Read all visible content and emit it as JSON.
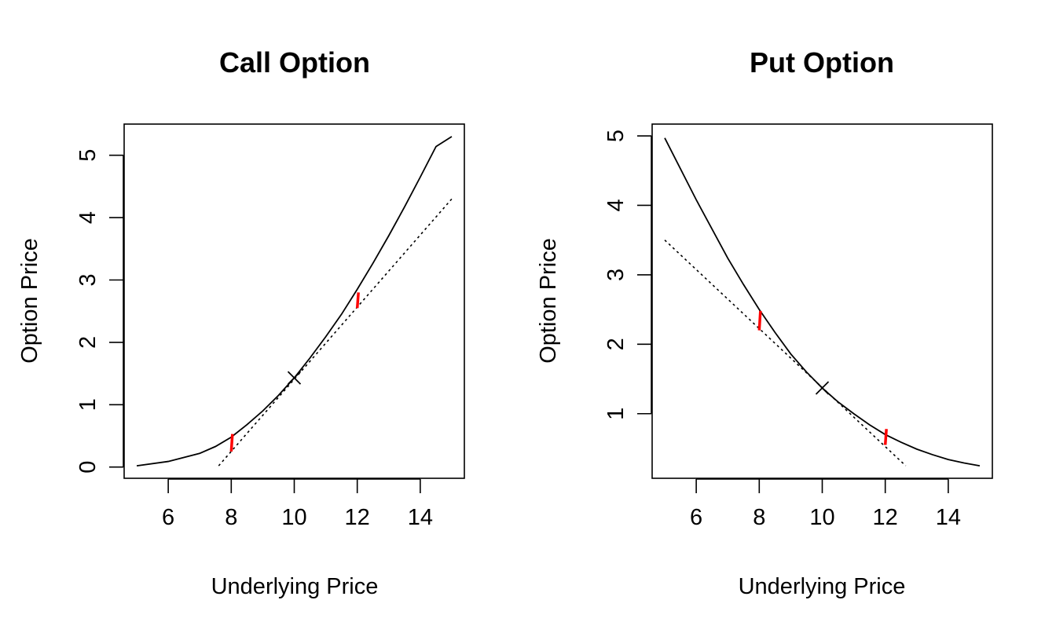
{
  "chart_data": [
    {
      "type": "line",
      "title": "Call Option",
      "xlabel": "Underlying Price",
      "ylabel": "Option Price",
      "xlim": [
        4.6,
        15.4
      ],
      "ylim": [
        -0.18,
        5.5
      ],
      "xticks": [
        6,
        8,
        10,
        12,
        14
      ],
      "yticks": [
        0,
        1,
        2,
        3,
        4,
        5
      ],
      "grid": false,
      "series": [
        {
          "name": "option price",
          "style": "solid",
          "x": [
            5,
            6,
            7,
            7.5,
            8,
            8.5,
            9,
            9.5,
            10,
            10.5,
            11,
            11.5,
            12,
            12.5,
            13,
            13.5,
            14,
            14.5,
            15
          ],
          "y": [
            0.02,
            0.09,
            0.22,
            0.33,
            0.48,
            0.68,
            0.9,
            1.15,
            1.43,
            1.75,
            2.09,
            2.45,
            2.85,
            3.27,
            3.71,
            4.17,
            4.65,
            5.14,
            5.3
          ]
        },
        {
          "name": "tangent at 10",
          "style": "dotted",
          "x": [
            7.6,
            15
          ],
          "y": [
            0.02,
            4.3
          ]
        }
      ],
      "point": {
        "x": 10,
        "y": 1.43,
        "symbol": "x"
      },
      "red_marks": [
        {
          "x": 8,
          "y_low": 0.25,
          "y_high": 0.53
        },
        {
          "x": 12,
          "y_low": 2.55,
          "y_high": 2.8
        }
      ]
    },
    {
      "type": "line",
      "title": "Put Option",
      "xlabel": "Underlying Price",
      "ylabel": "Option Price",
      "xlim": [
        4.6,
        15.4
      ],
      "ylim": [
        0.07,
        5.17
      ],
      "xticks": [
        6,
        8,
        10,
        12,
        14
      ],
      "yticks": [
        1,
        2,
        3,
        4,
        5
      ],
      "grid": false,
      "series": [
        {
          "name": "option price",
          "style": "solid",
          "x": [
            5,
            6,
            7,
            7.5,
            8,
            8.5,
            9,
            9.5,
            10,
            10.5,
            11,
            11.5,
            12,
            12.5,
            13,
            13.5,
            14,
            14.5,
            15
          ],
          "y": [
            4.97,
            4.08,
            3.24,
            2.86,
            2.5,
            2.17,
            1.86,
            1.6,
            1.37,
            1.17,
            1.0,
            0.84,
            0.7,
            0.59,
            0.49,
            0.41,
            0.34,
            0.29,
            0.25
          ]
        },
        {
          "name": "tangent at 10",
          "style": "dotted",
          "x": [
            5,
            12.65
          ],
          "y": [
            3.5,
            0.25
          ]
        }
      ],
      "point": {
        "x": 10,
        "y": 1.37,
        "symbol": "x"
      },
      "red_marks": [
        {
          "x": 8,
          "y_low": 2.2,
          "y_high": 2.48
        },
        {
          "x": 12,
          "y_low": 0.55,
          "y_high": 0.78
        }
      ]
    }
  ]
}
